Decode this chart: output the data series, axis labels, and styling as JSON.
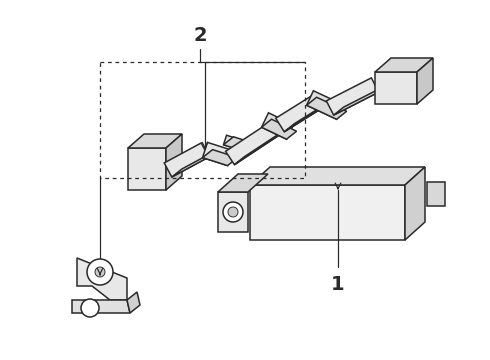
{
  "background_color": "#ffffff",
  "line_color": "#2a2a2a",
  "line_width": 1.1,
  "label_1": "1",
  "label_2": "2",
  "fig_w": 4.9,
  "fig_h": 3.6,
  "dpi": 100
}
